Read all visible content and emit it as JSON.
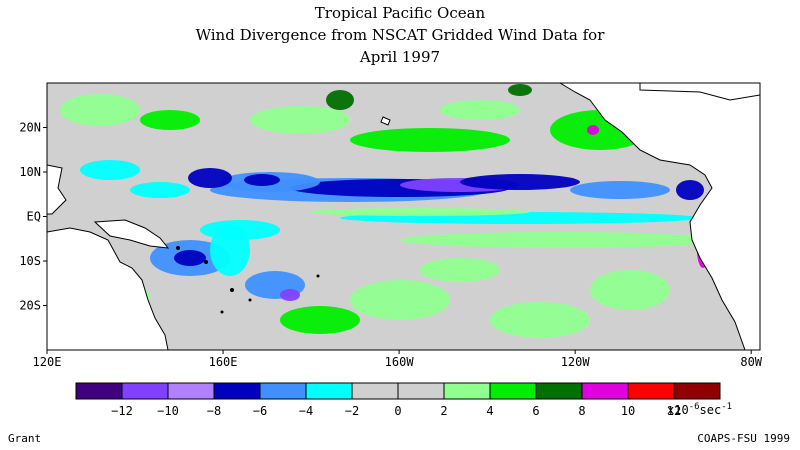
{
  "title": {
    "line1": "Tropical Pacific Ocean",
    "line2": "Wind Divergence from NSCAT Gridded Wind Data for",
    "line3": "April 1997"
  },
  "map": {
    "lat_labels": [
      "20N",
      "10N",
      "EQ",
      "10S",
      "20S"
    ],
    "lat_values": [
      20,
      10,
      0,
      -10,
      -20
    ],
    "lon_labels": [
      "120E",
      "160E",
      "160W",
      "120W",
      "80W"
    ],
    "lon_values": [
      120,
      160,
      200,
      240,
      280
    ],
    "lon_range": [
      120,
      282
    ],
    "lat_range": [
      -30,
      30
    ],
    "colors": {
      "ocean_neutral": "#d0d0d0",
      "land": "#ffffff",
      "coast": "#000000"
    }
  },
  "colorbar": {
    "colors": [
      "#400080",
      "#8040ff",
      "#b080ff",
      "#0000c0",
      "#4090ff",
      "#00ffff",
      "#d0d0d0",
      "#d0d0d0",
      "#90ff90",
      "#00ee00",
      "#007000",
      "#e000e0",
      "#ff0000",
      "#900000"
    ],
    "tick_values": [
      "-12",
      "-10",
      "-8",
      "-6",
      "-4",
      "-2",
      "0",
      "2",
      "4",
      "6",
      "8",
      "10",
      "12"
    ],
    "unit_prefix": "x10",
    "unit_exponent": "-6",
    "unit_suffix": "sec",
    "unit_suffix_exponent": "-1"
  },
  "footer": {
    "left": "Grant",
    "right": "COAPS-FSU 1999"
  }
}
